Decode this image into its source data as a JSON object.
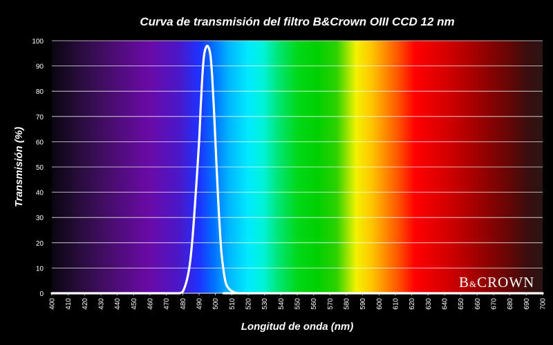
{
  "chart_data": {
    "type": "line",
    "title": "Curva de transmisión del filtro B&Crown OIII CCD 12 nm",
    "xlabel": "Longitud de onda (nm)",
    "ylabel": "Transmisión (%)",
    "xlim": [
      400,
      700
    ],
    "ylim": [
      0,
      100
    ],
    "x_ticks": [
      400,
      410,
      420,
      430,
      440,
      450,
      460,
      470,
      480,
      490,
      500,
      510,
      520,
      530,
      540,
      550,
      560,
      570,
      580,
      590,
      600,
      610,
      620,
      630,
      640,
      650,
      660,
      670,
      680,
      690,
      700
    ],
    "y_ticks": [
      0,
      10,
      20,
      30,
      40,
      50,
      60,
      70,
      80,
      90,
      100
    ],
    "grid": true,
    "background": "visible-spectrum",
    "series": [
      {
        "color": "#ffffff",
        "x": [
          400,
          470,
          478,
          481,
          484,
          486,
          488,
          490,
          491,
          492,
          493,
          494,
          495,
          496,
          497,
          498,
          499,
          500,
          501,
          502,
          503,
          504,
          506,
          508,
          511,
          514,
          520,
          700
        ],
        "y": [
          0,
          0,
          0,
          2,
          10,
          22,
          40,
          60,
          74,
          86,
          94,
          97,
          98,
          97,
          94,
          86,
          74,
          60,
          46,
          33,
          22,
          14,
          5,
          2,
          0.5,
          0,
          0,
          0
        ]
      }
    ]
  },
  "logo": {
    "prefix": "B",
    "ampersand": "&",
    "name": "CROWN"
  }
}
